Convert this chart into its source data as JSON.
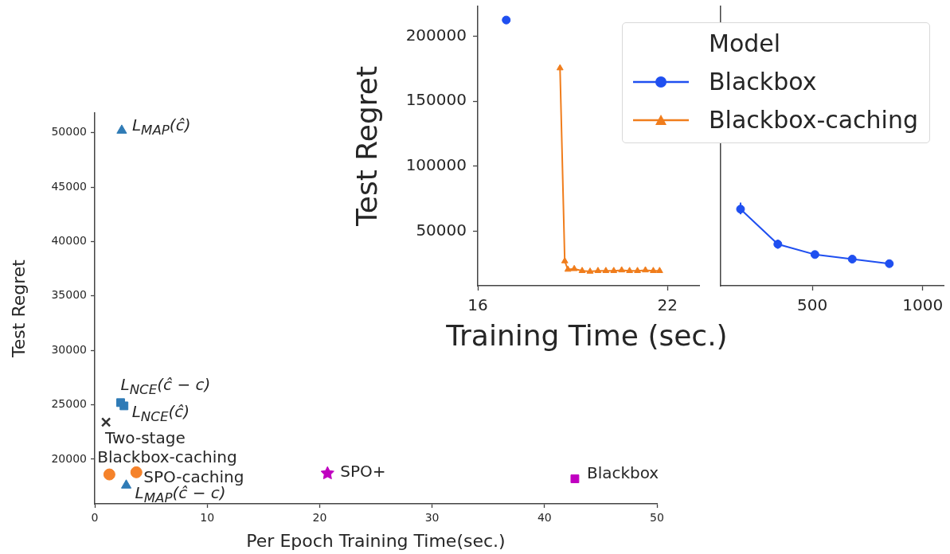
{
  "chart_data": [
    {
      "type": "scatter",
      "xlabel": "Per Epoch Training Time(sec.)",
      "ylabel": "Test Regret",
      "xlim": [
        0,
        50
      ],
      "ylim": [
        15900,
        51800
      ],
      "xticks": [
        0,
        10,
        20,
        30,
        40,
        50
      ],
      "yticks": [
        20000,
        25000,
        30000,
        35000,
        40000,
        45000,
        50000
      ],
      "series": [
        {
          "name": "L$_{MAP}$(ĉ)",
          "color": "#2f7bb6",
          "marker": "triangle",
          "x": [
            2.4
          ],
          "values": [
            50200
          ]
        },
        {
          "name": "L$_{NCE}$(ĉ − c)",
          "color": "#2f7bb6",
          "marker": "square",
          "x": [
            2.3
          ],
          "values": [
            25200
          ]
        },
        {
          "name": "L$_{NCE}$(ĉ)",
          "color": "#2f7bb6",
          "marker": "square",
          "x": [
            2.6
          ],
          "values": [
            24900
          ]
        },
        {
          "name": "Two-stage",
          "color": "#333333",
          "marker": "cross",
          "x": [
            1.0
          ],
          "values": [
            23400
          ]
        },
        {
          "name": "Blackbox-caching",
          "color": "#f5822a",
          "marker": "circle",
          "x": [
            1.3
          ],
          "values": [
            18600
          ]
        },
        {
          "name": "SPO-caching",
          "color": "#f5822a",
          "marker": "circle",
          "x": [
            3.7
          ],
          "values": [
            18800
          ]
        },
        {
          "name": "L$_{MAP}$(ĉ − c)",
          "color": "#2f7bb6",
          "marker": "triangle",
          "x": [
            2.8
          ],
          "values": [
            17600
          ]
        },
        {
          "name": "SPO+",
          "color": "#c000c0",
          "marker": "star",
          "x": [
            20.7
          ],
          "values": [
            18700
          ]
        },
        {
          "name": "Blackbox",
          "color": "#c000c0",
          "marker": "square",
          "x": [
            42.7
          ],
          "values": [
            18200
          ]
        }
      ]
    },
    {
      "type": "line",
      "xlabel": "Training Time (sec.)",
      "ylabel": "Test Regret",
      "legend_title": "Model",
      "legend": "top right",
      "xlim": [
        16,
        23
      ],
      "ylim": [
        8000,
        223000
      ],
      "xticks": [
        16,
        22
      ],
      "yticks": [
        50000,
        100000,
        150000,
        200000
      ],
      "series": [
        {
          "name": "Blackbox",
          "color": "#1f4ff0",
          "marker": "circle",
          "x": [
            16.9
          ],
          "values": [
            212500
          ]
        },
        {
          "name": "Blackbox-caching",
          "color": "#f07d1c",
          "marker": "triangle",
          "x": [
            18.6,
            18.75,
            18.85,
            19.05,
            19.3,
            19.55,
            19.8,
            20.05,
            20.3,
            20.55,
            20.8,
            21.05,
            21.3,
            21.55,
            21.75
          ],
          "values": [
            175500,
            27000,
            20500,
            21000,
            19500,
            19000,
            19500,
            19500,
            19500,
            20000,
            19500,
            19500,
            20000,
            19500,
            19500
          ]
        }
      ]
    },
    {
      "type": "line",
      "xlim": [
        85,
        1095
      ],
      "ylim": [
        8000,
        223000
      ],
      "xticks": [
        500,
        1000
      ],
      "tick_labels": "x",
      "series": [
        {
          "color": "#1f4ff0",
          "marker": "circle",
          "x": [
            175,
            344,
            512,
            681,
            849
          ],
          "values": [
            67000,
            40000,
            32000,
            28500,
            25000
          ],
          "errors": [
            [
              63000,
              72000
            ],
            [
              36500,
              43500
            ],
            null,
            null,
            null
          ]
        }
      ]
    }
  ]
}
